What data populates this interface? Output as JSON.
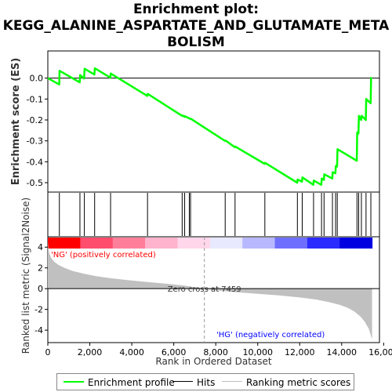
{
  "title": {
    "line1": "Enrichment plot:",
    "line2": "KEGG_ALANINE_ASPARTATE_AND_GLUTAMATE_META",
    "line3": "BOLISM"
  },
  "legend": {
    "items": [
      {
        "label": "Enrichment profile",
        "color": "#00ff00"
      },
      {
        "label": "Hits",
        "color": "#000000"
      },
      {
        "label": "Ranking metric scores",
        "color": "#c0c0c0"
      }
    ]
  },
  "chart_data": [
    {
      "type": "line",
      "panel": "enrichment",
      "ylabel": "Enrichment score (ES)",
      "ylim": [
        -0.545,
        0.13
      ],
      "yticks": [
        0.0,
        -0.1,
        -0.2,
        -0.3,
        -0.4,
        -0.5
      ],
      "ytick_labels": [
        "0.0",
        "-0.1",
        "-0.2",
        "-0.3",
        "-0.4",
        "-0.5"
      ],
      "xlim": [
        0,
        15800
      ],
      "grid": false,
      "line_color": "#00ff00",
      "series": [
        {
          "name": "Enrichment profile",
          "x": [
            0,
            540,
            560,
            1520,
            1540,
            1730,
            1750,
            2220,
            2240,
            2980,
            3000,
            4740,
            4760,
            6390,
            6410,
            6510,
            6530,
            6730,
            6750,
            6790,
            6810,
            8440,
            8460,
            8910,
            8930,
            10330,
            10350,
            11880,
            11900,
            12110,
            12130,
            12650,
            12670,
            13030,
            13050,
            13150,
            13170,
            13550,
            13570,
            13700,
            13720,
            13780,
            13800,
            14720,
            14740,
            14800,
            14820,
            14930,
            14950,
            15150,
            15170,
            15380,
            15400
          ],
          "y": [
            0.0,
            -0.03,
            0.035,
            -0.02,
            0.015,
            -0.002,
            0.045,
            0.017,
            0.047,
            0.002,
            0.022,
            -0.085,
            -0.075,
            -0.18,
            -0.178,
            -0.185,
            -0.182,
            -0.192,
            -0.193,
            -0.195,
            -0.194,
            -0.3,
            -0.298,
            -0.33,
            -0.327,
            -0.41,
            -0.405,
            -0.5,
            -0.485,
            -0.495,
            -0.475,
            -0.51,
            -0.49,
            -0.51,
            -0.48,
            -0.487,
            -0.46,
            -0.48,
            -0.45,
            -0.455,
            -0.42,
            -0.423,
            -0.34,
            -0.395,
            -0.26,
            -0.265,
            -0.18,
            -0.2,
            -0.18,
            -0.2,
            -0.1,
            -0.12,
            0.005
          ]
        }
      ]
    },
    {
      "type": "scatter",
      "panel": "hits",
      "marker": "vertical-line",
      "xlim": [
        0,
        15800
      ],
      "series": [
        {
          "name": "Hits",
          "x": [
            550,
            1530,
            1740,
            2230,
            2990,
            4750,
            6400,
            6520,
            6740,
            6800,
            8450,
            8920,
            10340,
            11890,
            12120,
            12660,
            13040,
            13160,
            13560,
            13710,
            13790,
            14730,
            14810,
            14940,
            15160,
            15390
          ]
        }
      ]
    },
    {
      "type": "heatmap",
      "panel": "ranking-colorbar",
      "xlim": [
        0,
        15800
      ],
      "colors": [
        "#ff0000",
        "#ff4d6d",
        "#ff7f9a",
        "#ffb3cc",
        "#ffd6ea",
        "#e8e8ff",
        "#b8b8ff",
        "#6f6fff",
        "#2b2bff",
        "#0000e0"
      ],
      "annotations": [
        {
          "text": "'NG' (positively correlated)",
          "color": "#ff0000"
        },
        {
          "text": "'HG' (negatively correlated)",
          "color": "#0000ff"
        }
      ]
    },
    {
      "type": "area",
      "panel": "ranked-list",
      "xlabel": "Rank in Ordered Dataset",
      "ylabel": "Ranked list metric (Signal2Noise)",
      "xlim": [
        0,
        15800
      ],
      "ylim": [
        -5.2,
        5.0
      ],
      "xticks": [
        0,
        2000,
        4000,
        6000,
        8000,
        10000,
        12000,
        14000,
        16000
      ],
      "xtick_labels": [
        "0",
        "2,000",
        "4,000",
        "6,000",
        "8,000",
        "10,000",
        "12,000",
        "14,000",
        "16,000"
      ],
      "yticks": [
        4,
        2,
        0,
        -2,
        -4
      ],
      "ytick_labels": [
        "4",
        "2",
        "0",
        "-2",
        "-4"
      ],
      "fill_color": "#c0c0c0",
      "zero_cross": 7459,
      "zero_cross_label": "Zero cross at 7459",
      "series": [
        {
          "name": "Ranking metric scores",
          "x": [
            0,
            20,
            60,
            150,
            300,
            500,
            800,
            1200,
            1700,
            2300,
            3000,
            3800,
            4700,
            5600,
            6500,
            7000,
            7459,
            8000,
            9000,
            10000,
            11000,
            12000,
            12800,
            13400,
            13900,
            14300,
            14600,
            14900,
            15100,
            15300,
            15450
          ],
          "y": [
            4.6,
            4.0,
            3.5,
            3.0,
            2.6,
            2.3,
            2.0,
            1.7,
            1.45,
            1.2,
            1.0,
            0.82,
            0.65,
            0.48,
            0.3,
            0.15,
            0.0,
            -0.15,
            -0.35,
            -0.5,
            -0.65,
            -0.85,
            -1.05,
            -1.3,
            -1.55,
            -1.85,
            -2.2,
            -2.7,
            -3.2,
            -3.9,
            -4.9
          ]
        }
      ]
    }
  ]
}
